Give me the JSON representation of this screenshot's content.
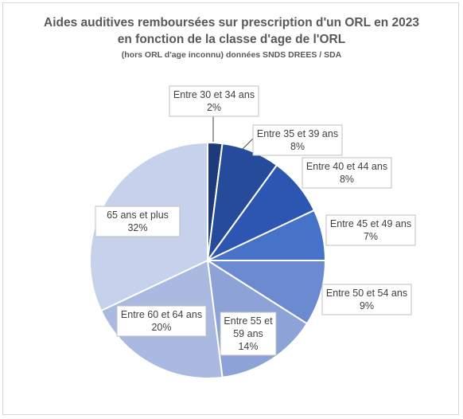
{
  "chart_data": {
    "type": "pie",
    "title": "Aides auditives remboursées sur prescription d'un ORL en 2023",
    "title_line2": "en fonction de la classe d'age de l'ORL",
    "subtitle": "(hors ORL d'age inconnu) données SNDS DREES / SDA",
    "slices": [
      {
        "label": "Entre 30 et 34 ans",
        "pct_text": "2%",
        "value": 2,
        "color": "#1f3a7a"
      },
      {
        "label": "Entre 35 et 39 ans",
        "pct_text": "8%",
        "value": 8,
        "color": "#264b9a"
      },
      {
        "label": "Entre 40 et 44 ans",
        "pct_text": "8%",
        "value": 8,
        "color": "#2d56b3"
      },
      {
        "label": "Entre 45 et 49 ans",
        "pct_text": "7%",
        "value": 7,
        "color": "#4672c8"
      },
      {
        "label": "Entre 50 et 54 ans",
        "pct_text": "9%",
        "value": 9,
        "color": "#6b8ad0"
      },
      {
        "label": "Entre 55 et 59 ans",
        "pct_text": "14%",
        "value": 14,
        "color": "#8da3d8"
      },
      {
        "label": "Entre 60 et 64 ans",
        "pct_text": "20%",
        "value": 20,
        "color": "#a9b9e0"
      },
      {
        "label": "65 ans et plus",
        "pct_text": "32%",
        "value": 32,
        "color": "#c6d1ec"
      }
    ]
  }
}
